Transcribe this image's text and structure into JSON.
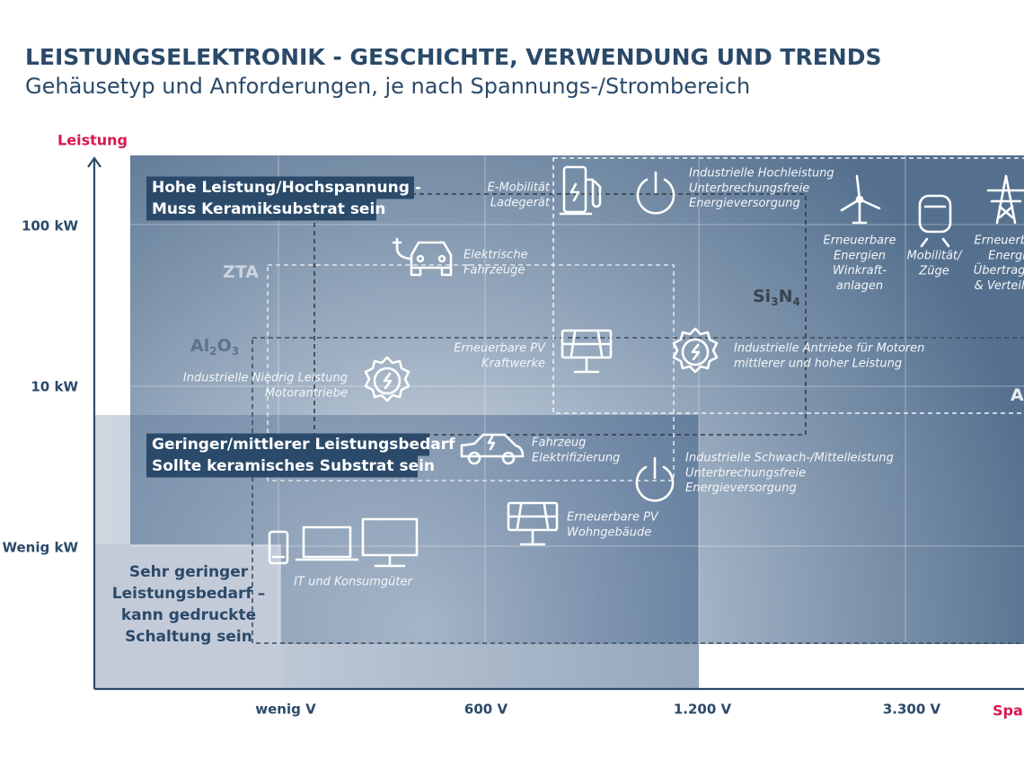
{
  "header": {
    "title": "LEISTUNGSELEKTRONIK - GESCHICHTE, VERWENDUNG UND TRENDS",
    "subtitle": "Gehäusetyp und Anforderungen, je nach Spannungs-/Strombereich"
  },
  "axes": {
    "y_label": "Leistung",
    "y_ticks": [
      "100 kW",
      "10 kW",
      "Wenig kW"
    ],
    "x_label": "Spannung",
    "x_ticks": [
      "wenig V",
      "600 V",
      "1.200 V",
      "3.300 V"
    ]
  },
  "zones": [
    {
      "lines": [
        "Hohe Leistung/Hochspannung -",
        "Muss Keramiksubstrat sein"
      ]
    },
    {
      "lines": [
        "Geringer/mittlerer Leistungsbedarf –",
        "Sollte keramisches Substrat sein"
      ]
    },
    {
      "lines": [
        "Sehr geringer",
        "Leistungsbedarf –",
        "kann gedruckte",
        "Schaltung sein"
      ]
    }
  ],
  "materials": [
    {
      "parts": [
        "ZTA"
      ]
    },
    {
      "parts": [
        "Al",
        "2",
        "O",
        "3"
      ]
    },
    {
      "parts": [
        "Si",
        "3",
        "N",
        "4"
      ]
    },
    {
      "parts": [
        "AlN"
      ]
    }
  ],
  "applications": [
    {
      "lines": [
        "E-Mobilität",
        "Ladegerät"
      ]
    },
    {
      "lines": [
        "Industrielle Hochleistung",
        "Unterbrechungsfreie",
        "Energieversorgung"
      ]
    },
    {
      "lines": [
        "Erneuerbare",
        "Energien",
        "Winkraft-",
        "anlagen"
      ]
    },
    {
      "lines": [
        "Mobilität/",
        "Züge"
      ]
    },
    {
      "lines": [
        "Erneuerbare",
        "Energie",
        "Übertragung",
        "& Verteilung"
      ]
    },
    {
      "lines": [
        "Elektrische",
        "Fahrzeuge"
      ]
    },
    {
      "lines": [
        "Erneuerbare PV",
        "Kraftwerke"
      ]
    },
    {
      "lines": [
        "Industrielle Antriebe für Motoren",
        "mittlerer und hoher Leistung"
      ]
    },
    {
      "lines": [
        "Industrielle Niedrig Leistung",
        "Motorantriebe"
      ]
    },
    {
      "lines": [
        "Fahrzeug",
        "Elektrifizierung"
      ]
    },
    {
      "lines": [
        "Industrielle Schwach-/Mittelleistung",
        "Unterbrechungsfreie",
        "Energieversorgung"
      ]
    },
    {
      "lines": [
        "Erneuerbare PV",
        "Wohngebäude"
      ]
    },
    {
      "lines": [
        "IT und Konsumgüter"
      ]
    }
  ]
}
